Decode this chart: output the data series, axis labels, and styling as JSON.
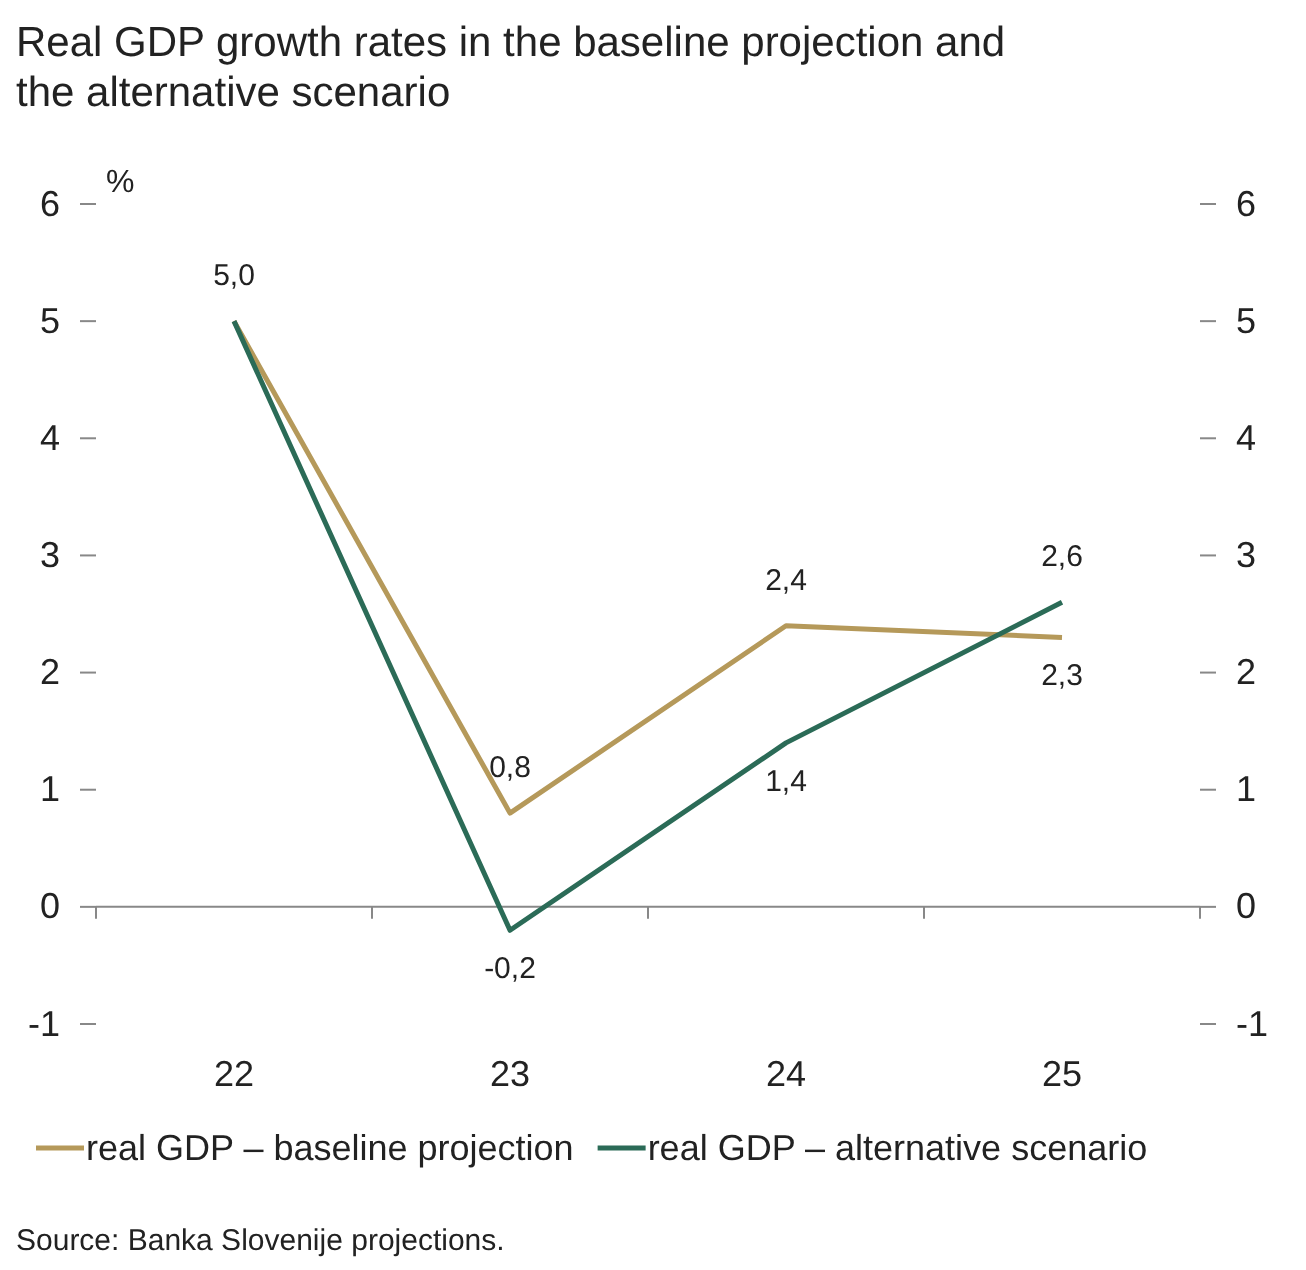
{
  "chart_data": {
    "type": "line",
    "title": "Real GDP growth rates in the baseline projection and the alternative scenario",
    "ylabel": "%",
    "categories": [
      "22",
      "23",
      "24",
      "25"
    ],
    "series": [
      {
        "name": "real GDP – baseline projection",
        "color": "#b5995a",
        "values": [
          5.0,
          0.8,
          2.4,
          2.3
        ],
        "value_labels": [
          "5,0",
          "0,8",
          "2,4",
          "2,3"
        ]
      },
      {
        "name": "real GDP – alternative scenario",
        "color": "#2b6b57",
        "values": [
          5.0,
          -0.2,
          1.4,
          2.6
        ],
        "value_labels": [
          null,
          "-0,2",
          "1,4",
          "2,6"
        ]
      }
    ],
    "ylim": [
      -1,
      6
    ],
    "yticks": [
      -1,
      0,
      1,
      2,
      3,
      4,
      5,
      6
    ],
    "y2lim": [
      -1,
      6
    ],
    "y2ticks": [
      -1,
      0,
      1,
      2,
      3,
      4,
      5,
      6
    ],
    "legend": "bottom",
    "marker": "none",
    "line_style": "solid",
    "annotations": [
      "Source: Banka Slovenije projections."
    ]
  }
}
